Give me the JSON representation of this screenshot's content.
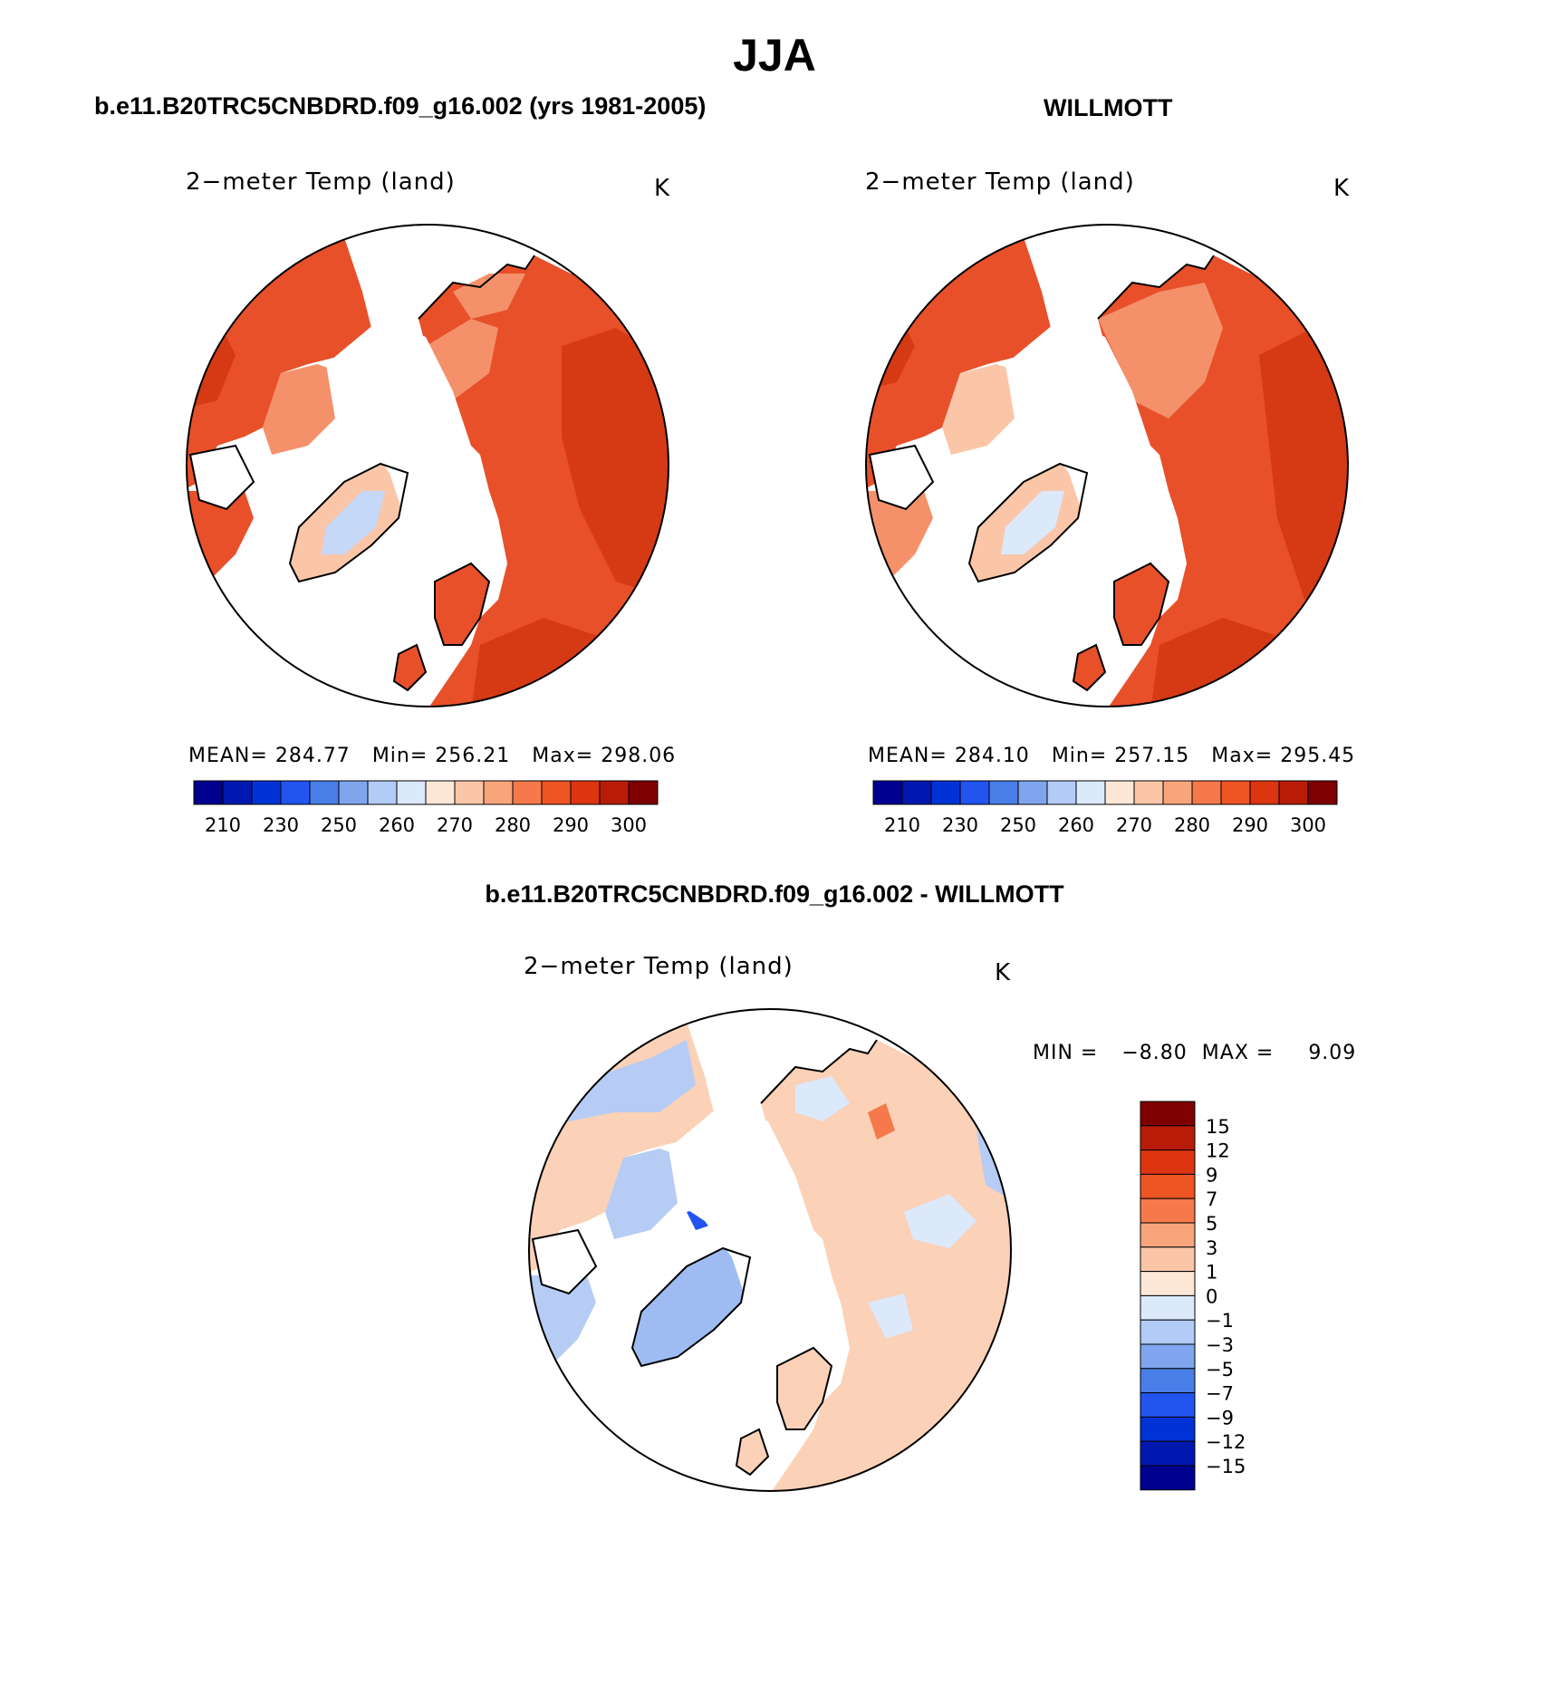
{
  "page": {
    "title": "JJA",
    "left_case": "b.e11.B20TRC5CNBDRD.f09_g16.002 (yrs 1981-2005)",
    "right_case": "WILLMOTT",
    "diff_case": "b.e11.B20TRC5CNBDRD.f09_g16.002 - WILLMOTT"
  },
  "colors": {
    "abs_scale": [
      "#00008f",
      "#0018b0",
      "#0033d6",
      "#2255f0",
      "#4a7ee8",
      "#7fa5ee",
      "#b2cbf7",
      "#dce9fb",
      "#fde8d8",
      "#fbc6a8",
      "#f9a57c",
      "#f5794a",
      "#ee5522",
      "#dc3510",
      "#b81c08",
      "#7f0000"
    ],
    "diff_scale": [
      "#00008f",
      "#0018b0",
      "#0033d6",
      "#2255f0",
      "#4a7ee8",
      "#7fa5ee",
      "#b2cbf7",
      "#dce9fb",
      "#fde8d8",
      "#fbc6a8",
      "#f9a57c",
      "#f5794a",
      "#ee5522",
      "#dc3510",
      "#b81c08",
      "#7f0000"
    ],
    "land_red": "#e8502a",
    "land_dark": "#d63a14",
    "land_light": "#f4916a",
    "land_pale": "#fbc6a8",
    "ice_blue": "#c5d8f8",
    "diff_pale": "#fbd1b8",
    "diff_blue": "#b6ccf4"
  },
  "chart_data": [
    {
      "type": "heatmap",
      "projection": "north polar stereographic",
      "title": "2−meter Temp (land)",
      "units": "K",
      "stats": {
        "mean_label": "MEAN=",
        "mean": "284.77",
        "min_label": "Min=",
        "min": "256.21",
        "max_label": "Max=",
        "max": "298.06"
      },
      "colorbar": {
        "orientation": "horizontal",
        "tick_labels": [
          "210",
          "230",
          "250",
          "260",
          "270",
          "280",
          "290",
          "300"
        ]
      }
    },
    {
      "type": "heatmap",
      "projection": "north polar stereographic",
      "title": "2−meter Temp (land)",
      "units": "K",
      "stats": {
        "mean_label": "MEAN=",
        "mean": "284.10",
        "min_label": "Min=",
        "min": "257.15",
        "max_label": "Max=",
        "max": "295.45"
      },
      "colorbar": {
        "orientation": "horizontal",
        "tick_labels": [
          "210",
          "230",
          "250",
          "260",
          "270",
          "280",
          "290",
          "300"
        ]
      }
    },
    {
      "type": "heatmap",
      "projection": "north polar stereographic",
      "title": "2−meter Temp (land)",
      "units": "K",
      "stats": {
        "min_label": "MIN =",
        "min": "−8.80",
        "max_label": "MAX =",
        "max": "9.09"
      },
      "colorbar": {
        "orientation": "vertical",
        "tick_labels": [
          "15",
          "12",
          "9",
          "7",
          "5",
          "3",
          "1",
          "0",
          "−1",
          "−3",
          "−5",
          "−7",
          "−9",
          "−12",
          "−15"
        ]
      }
    }
  ]
}
